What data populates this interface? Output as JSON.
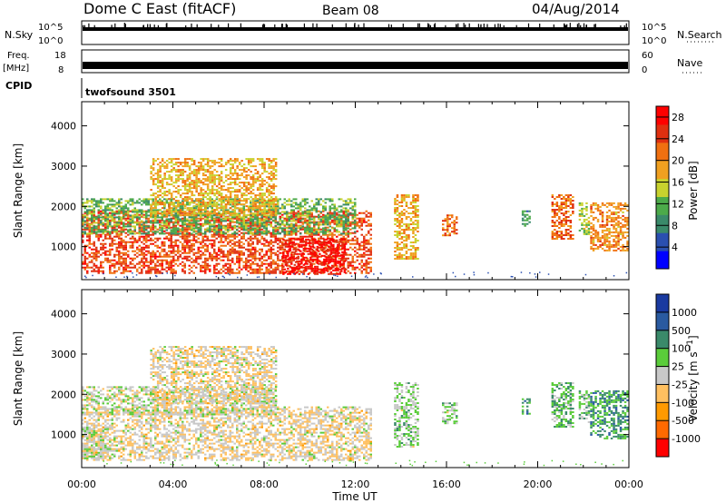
{
  "header": {
    "station": "Dome C East (fitACF)",
    "beam": "Beam 08",
    "date": "04/Aug/2014"
  },
  "noise_panel": {
    "left_label": "N.Sky",
    "right_label": "N.Search",
    "left_ticks": [
      "10^5",
      "10^0"
    ],
    "right_ticks": [
      "10^5",
      "10^0"
    ]
  },
  "freq_panel": {
    "left_label_1": "Freq.",
    "left_label_2": "[MHz]",
    "right_label": "Nave",
    "left_ticks": [
      "18",
      "8"
    ],
    "right_ticks": [
      "60",
      "0"
    ]
  },
  "cpid": {
    "label": "CPID",
    "value": "twofsound 3501"
  },
  "x_axis": {
    "label": "Time UT",
    "ticks": [
      "00:00",
      "04:00",
      "08:00",
      "12:00",
      "16:00",
      "20:00",
      "00:00"
    ]
  },
  "colors": {
    "power": [
      "#0000ff",
      "#2a4fb0",
      "#3a8a6a",
      "#4caa4a",
      "#c8d22e",
      "#f0a020",
      "#f07010",
      "#e03010",
      "#ff0000"
    ],
    "velocity": [
      "#ff0000",
      "#ff6a00",
      "#ff9a00",
      "#ffc060",
      "#c8c8c8",
      "#5acc3a",
      "#3a8a6a",
      "#2a5aa0",
      "#1a3aa0"
    ]
  },
  "chart_data": [
    {
      "type": "heatmap",
      "title": "",
      "xlabel": "Time UT",
      "ylabel": "Slant Range [km]",
      "xlim": [
        0,
        24
      ],
      "ylim": [
        180,
        4600
      ],
      "yticks": [
        1000,
        2000,
        3000,
        4000
      ],
      "colorbar_label": "Power [dB]",
      "colorbar_ticks": [
        4,
        8,
        12,
        16,
        20,
        24,
        28
      ],
      "colorbar_range": [
        0,
        30
      ],
      "echo_regions": [
        {
          "t0": 0.0,
          "t1": 12.7,
          "r0": 350,
          "r1": 1900,
          "level": 24
        },
        {
          "t0": 0.0,
          "t1": 12.0,
          "r0": 1300,
          "r1": 2200,
          "level": 12
        },
        {
          "t0": 3.0,
          "t1": 8.5,
          "r0": 1800,
          "r1": 3200,
          "level": 18
        },
        {
          "t0": 8.8,
          "t1": 11.5,
          "r0": 300,
          "r1": 1200,
          "level": 28
        },
        {
          "t0": 13.7,
          "t1": 14.7,
          "r0": 700,
          "r1": 2300,
          "level": 18
        },
        {
          "t0": 15.8,
          "t1": 16.4,
          "r0": 1300,
          "r1": 1800,
          "level": 22
        },
        {
          "t0": 19.3,
          "t1": 19.6,
          "r0": 1500,
          "r1": 1900,
          "level": 10
        },
        {
          "t0": 20.6,
          "t1": 21.5,
          "r0": 1200,
          "r1": 2300,
          "level": 22
        },
        {
          "t0": 21.8,
          "t1": 22.2,
          "r0": 1300,
          "r1": 2100,
          "level": 14
        },
        {
          "t0": 22.3,
          "t1": 23.9,
          "r0": 900,
          "r1": 2100,
          "level": 20
        }
      ]
    },
    {
      "type": "heatmap",
      "title": "",
      "xlabel": "Time UT",
      "ylabel": "Slant Range [km]",
      "xlim": [
        0,
        24
      ],
      "ylim": [
        180,
        4600
      ],
      "yticks": [
        1000,
        2000,
        3000,
        4000
      ],
      "colorbar_label": "Velocity [m s^-1]",
      "colorbar_ticks": [
        1000,
        500,
        100,
        25,
        -25,
        -100,
        -500,
        -1000
      ],
      "colorbar_range": [
        -1500,
        1500
      ],
      "echo_regions": [
        {
          "t0": 0.0,
          "t1": 12.7,
          "r0": 350,
          "r1": 1700,
          "level": -150
        },
        {
          "t0": 0.0,
          "t1": 8.5,
          "r0": 1500,
          "r1": 2200,
          "level": 0
        },
        {
          "t0": 0.0,
          "t1": 1.0,
          "r0": 400,
          "r1": 1200,
          "level": 50
        },
        {
          "t0": 3.0,
          "t1": 8.5,
          "r0": 1800,
          "r1": 3200,
          "level": -150
        },
        {
          "t0": 13.7,
          "t1": 14.7,
          "r0": 700,
          "r1": 2300,
          "level": 200
        },
        {
          "t0": 15.8,
          "t1": 16.4,
          "r0": 1300,
          "r1": 1800,
          "level": 200
        },
        {
          "t0": 19.3,
          "t1": 19.6,
          "r0": 1500,
          "r1": 1900,
          "level": 700
        },
        {
          "t0": 20.6,
          "t1": 21.5,
          "r0": 1200,
          "r1": 2300,
          "level": 300
        },
        {
          "t0": 21.8,
          "t1": 22.2,
          "r0": 1300,
          "r1": 2100,
          "level": 300
        },
        {
          "t0": 22.3,
          "t1": 23.9,
          "r0": 900,
          "r1": 2100,
          "level": 600
        }
      ]
    }
  ]
}
